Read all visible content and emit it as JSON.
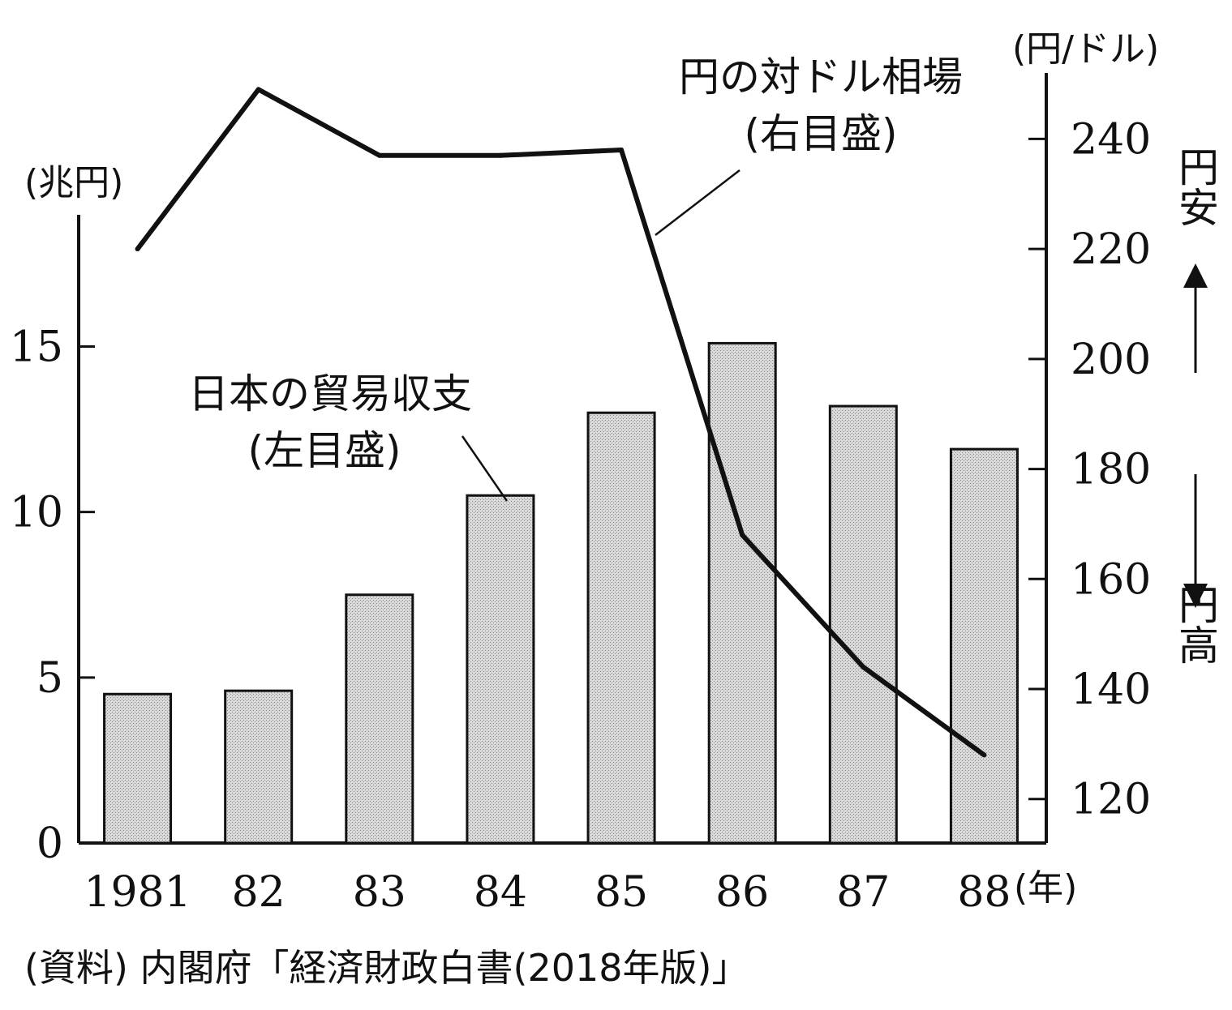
{
  "chart_data": {
    "type": "bar+line",
    "categories": [
      "1981",
      "82",
      "83",
      "84",
      "85",
      "86",
      "87",
      "88"
    ],
    "x_unit": "(年)",
    "left_axis": {
      "unit": "(兆円)",
      "ylim": [
        0,
        18
      ],
      "ticks": [
        "0",
        "5",
        "10",
        "15"
      ]
    },
    "right_axis": {
      "unit": "(円/ドル)",
      "ylim": [
        112,
        252
      ],
      "ticks": [
        "120",
        "140",
        "160",
        "180",
        "200",
        "220",
        "240"
      ]
    },
    "series": [
      {
        "name": "日本の貿易収支",
        "axis_note": "(左目盛)",
        "axis": "left",
        "type": "bar",
        "values": [
          4.5,
          4.6,
          7.5,
          10.5,
          13.0,
          15.1,
          13.2,
          11.9
        ]
      },
      {
        "name": "円の対ドル相場",
        "axis_note": "(右目盛)",
        "axis": "right",
        "type": "line",
        "values": [
          220,
          249,
          237,
          237,
          238,
          168,
          144,
          128
        ]
      }
    ],
    "direction_labels": {
      "up": "円安",
      "down": "円高"
    },
    "source": "(資料) 内閣府「経済財政白書(2018年版)」",
    "grid": false
  }
}
